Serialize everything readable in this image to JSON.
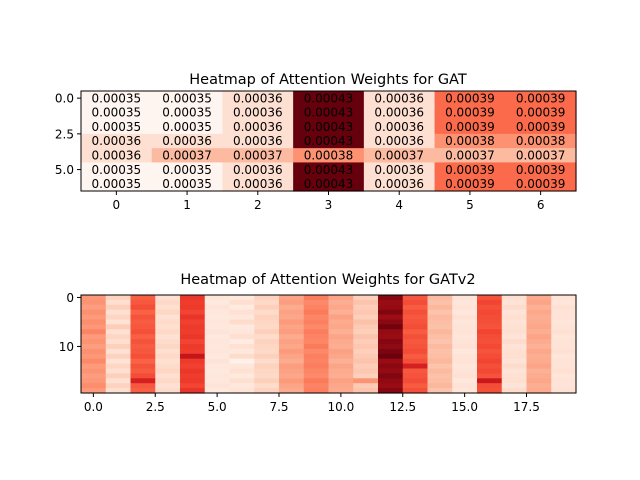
{
  "chart_data": [
    {
      "type": "heatmap",
      "title": "Heatmap of Attention Weights for GAT",
      "colormap": "Reds",
      "x_ticks": [
        "0",
        "1",
        "2",
        "3",
        "4",
        "5",
        "6"
      ],
      "y_ticks": [
        "0.0",
        "2.5",
        "5.0"
      ],
      "x_tick_values": [
        0,
        1,
        2,
        3,
        4,
        5,
        6
      ],
      "y_tick_values": [
        0.0,
        2.5,
        5.0
      ],
      "rows": 7,
      "cols": 7,
      "value_range": [
        0.00035,
        0.00043
      ],
      "values": [
        [
          0.00035,
          0.00035,
          0.00036,
          0.00043,
          0.00036,
          0.00039,
          0.00039
        ],
        [
          0.00035,
          0.00035,
          0.00036,
          0.00043,
          0.00036,
          0.00039,
          0.00039
        ],
        [
          0.00035,
          0.00035,
          0.00036,
          0.00043,
          0.00036,
          0.00039,
          0.00039
        ],
        [
          0.00036,
          0.00036,
          0.00036,
          0.00043,
          0.00036,
          0.00038,
          0.00038
        ],
        [
          0.00036,
          0.00037,
          0.00037,
          0.00038,
          0.00037,
          0.00037,
          0.00037
        ],
        [
          0.00035,
          0.00035,
          0.00036,
          0.00043,
          0.00036,
          0.00039,
          0.00039
        ],
        [
          0.00035,
          0.00035,
          0.00036,
          0.00043,
          0.00036,
          0.00039,
          0.00039
        ]
      ],
      "labels": [
        [
          "0.00035",
          "0.00035",
          "0.00036",
          "0.00043",
          "0.00036",
          "0.00039",
          "0.00039"
        ],
        [
          "0.00035",
          "0.00035",
          "0.00036",
          "0.00043",
          "0.00036",
          "0.00039",
          "0.00039"
        ],
        [
          "0.00035",
          "0.00035",
          "0.00036",
          "0.00043",
          "0.00036",
          "0.00039",
          "0.00039"
        ],
        [
          "0.00036",
          "0.00036",
          "0.00036",
          "0.00043",
          "0.00036",
          "0.00038",
          "0.00038"
        ],
        [
          "0.00036",
          "0.00037",
          "0.00037",
          "0.00038",
          "0.00037",
          "0.00037",
          "0.00037"
        ],
        [
          "0.00035",
          "0.00035",
          "0.00036",
          "0.00043",
          "0.00036",
          "0.00039",
          "0.00039"
        ],
        [
          "0.00035",
          "0.00035",
          "0.00036",
          "0.00043",
          "0.00036",
          "0.00039",
          "0.00039"
        ]
      ]
    },
    {
      "type": "heatmap",
      "title": "Heatmap of Attention Weights for GATv2",
      "colormap": "Reds",
      "x_ticks": [
        "0.0",
        "2.5",
        "5.0",
        "7.5",
        "10.0",
        "12.5",
        "15.0",
        "17.5"
      ],
      "y_ticks": [
        "0",
        "10"
      ],
      "x_tick_values": [
        0.0,
        2.5,
        5.0,
        7.5,
        10.0,
        12.5,
        15.0,
        17.5
      ],
      "y_tick_values": [
        0,
        10
      ],
      "rows": 20,
      "cols": 20,
      "value_range": [
        0.0,
        1.0
      ],
      "column_base_intensity": [
        0.36,
        0.14,
        0.55,
        0.14,
        0.62,
        0.08,
        0.1,
        0.16,
        0.32,
        0.42,
        0.3,
        0.2,
        0.92,
        0.56,
        0.24,
        0.1,
        0.58,
        0.12,
        0.3,
        0.1
      ],
      "values": [
        [
          0.36,
          0.17,
          0.53,
          0.12,
          0.64,
          0.09,
          0.07,
          0.17,
          0.32,
          0.44,
          0.32,
          0.18,
          0.94,
          0.55,
          0.25,
          0.1,
          0.56,
          0.13,
          0.3,
          0.11
        ],
        [
          0.37,
          0.13,
          0.55,
          0.15,
          0.62,
          0.07,
          0.13,
          0.15,
          0.34,
          0.4,
          0.29,
          0.22,
          0.9,
          0.58,
          0.23,
          0.09,
          0.6,
          0.11,
          0.32,
          0.09
        ],
        [
          0.34,
          0.18,
          0.58,
          0.13,
          0.63,
          0.1,
          0.06,
          0.18,
          0.3,
          0.42,
          0.31,
          0.19,
          0.91,
          0.54,
          0.26,
          0.11,
          0.57,
          0.14,
          0.28,
          0.12
        ],
        [
          0.38,
          0.12,
          0.52,
          0.16,
          0.6,
          0.08,
          0.12,
          0.14,
          0.33,
          0.45,
          0.28,
          0.21,
          0.95,
          0.57,
          0.22,
          0.08,
          0.59,
          0.1,
          0.31,
          0.1
        ],
        [
          0.35,
          0.16,
          0.56,
          0.12,
          0.65,
          0.07,
          0.08,
          0.17,
          0.31,
          0.41,
          0.33,
          0.18,
          0.89,
          0.55,
          0.25,
          0.12,
          0.58,
          0.13,
          0.29,
          0.11
        ],
        [
          0.39,
          0.11,
          0.54,
          0.14,
          0.61,
          0.09,
          0.14,
          0.16,
          0.35,
          0.43,
          0.3,
          0.23,
          0.93,
          0.56,
          0.24,
          0.09,
          0.57,
          0.11,
          0.3,
          0.09
        ],
        [
          0.36,
          0.19,
          0.55,
          0.13,
          0.63,
          0.08,
          0.07,
          0.15,
          0.32,
          0.4,
          0.31,
          0.2,
          0.98,
          0.58,
          0.23,
          0.1,
          0.56,
          0.12,
          0.31,
          0.1
        ],
        [
          0.42,
          0.12,
          0.57,
          0.15,
          0.62,
          0.1,
          0.09,
          0.18,
          0.34,
          0.44,
          0.28,
          0.18,
          0.91,
          0.54,
          0.26,
          0.11,
          0.6,
          0.13,
          0.29,
          0.12
        ],
        [
          0.35,
          0.16,
          0.53,
          0.12,
          0.64,
          0.07,
          0.13,
          0.14,
          0.3,
          0.42,
          0.32,
          0.22,
          0.9,
          0.57,
          0.24,
          0.09,
          0.58,
          0.1,
          0.32,
          0.09
        ],
        [
          0.37,
          0.13,
          0.56,
          0.14,
          0.6,
          0.09,
          0.06,
          0.17,
          0.33,
          0.41,
          0.3,
          0.19,
          0.94,
          0.55,
          0.22,
          0.1,
          0.57,
          0.14,
          0.3,
          0.11
        ],
        [
          0.34,
          0.18,
          0.54,
          0.16,
          0.63,
          0.08,
          0.12,
          0.16,
          0.31,
          0.45,
          0.29,
          0.21,
          0.92,
          0.56,
          0.25,
          0.12,
          0.59,
          0.11,
          0.28,
          0.1
        ],
        [
          0.38,
          0.12,
          0.55,
          0.13,
          0.62,
          0.09,
          0.08,
          0.15,
          0.35,
          0.4,
          0.33,
          0.18,
          0.96,
          0.58,
          0.23,
          0.08,
          0.56,
          0.12,
          0.31,
          0.12
        ],
        [
          0.36,
          0.17,
          0.57,
          0.15,
          0.78,
          0.07,
          0.14,
          0.18,
          0.32,
          0.43,
          0.31,
          0.2,
          0.99,
          0.54,
          0.24,
          0.1,
          0.58,
          0.13,
          0.29,
          0.09
        ],
        [
          0.4,
          0.11,
          0.52,
          0.12,
          0.63,
          0.1,
          0.03,
          0.14,
          0.3,
          0.42,
          0.28,
          0.22,
          0.9,
          0.57,
          0.26,
          0.11,
          0.6,
          0.1,
          0.3,
          0.11
        ],
        [
          0.35,
          0.16,
          0.56,
          0.14,
          0.61,
          0.08,
          0.09,
          0.17,
          0.34,
          0.44,
          0.32,
          0.19,
          0.93,
          0.72,
          0.22,
          0.09,
          0.57,
          0.14,
          0.32,
          0.1
        ],
        [
          0.37,
          0.13,
          0.54,
          0.16,
          0.64,
          0.07,
          0.12,
          0.16,
          0.33,
          0.41,
          0.3,
          0.21,
          0.91,
          0.55,
          0.25,
          0.1,
          0.59,
          0.11,
          0.28,
          0.12
        ],
        [
          0.34,
          0.18,
          0.58,
          0.13,
          0.62,
          0.09,
          0.07,
          0.15,
          0.31,
          0.4,
          0.29,
          0.18,
          0.95,
          0.56,
          0.23,
          0.12,
          0.56,
          0.12,
          0.3,
          0.09
        ],
        [
          0.36,
          0.12,
          0.72,
          0.15,
          0.63,
          0.08,
          0.13,
          0.18,
          0.35,
          0.45,
          0.33,
          0.37,
          0.92,
          0.58,
          0.24,
          0.08,
          0.75,
          0.13,
          0.31,
          0.11
        ],
        [
          0.39,
          0.17,
          0.55,
          0.12,
          0.6,
          0.1,
          0.08,
          0.14,
          0.32,
          0.42,
          0.31,
          0.2,
          0.9,
          0.54,
          0.26,
          0.11,
          0.58,
          0.1,
          0.29,
          0.1
        ],
        [
          0.35,
          0.13,
          0.53,
          0.14,
          0.65,
          0.07,
          0.11,
          0.17,
          0.3,
          0.43,
          0.3,
          0.22,
          0.94,
          0.57,
          0.22,
          0.09,
          0.57,
          0.14,
          0.3,
          0.12
        ]
      ]
    }
  ]
}
